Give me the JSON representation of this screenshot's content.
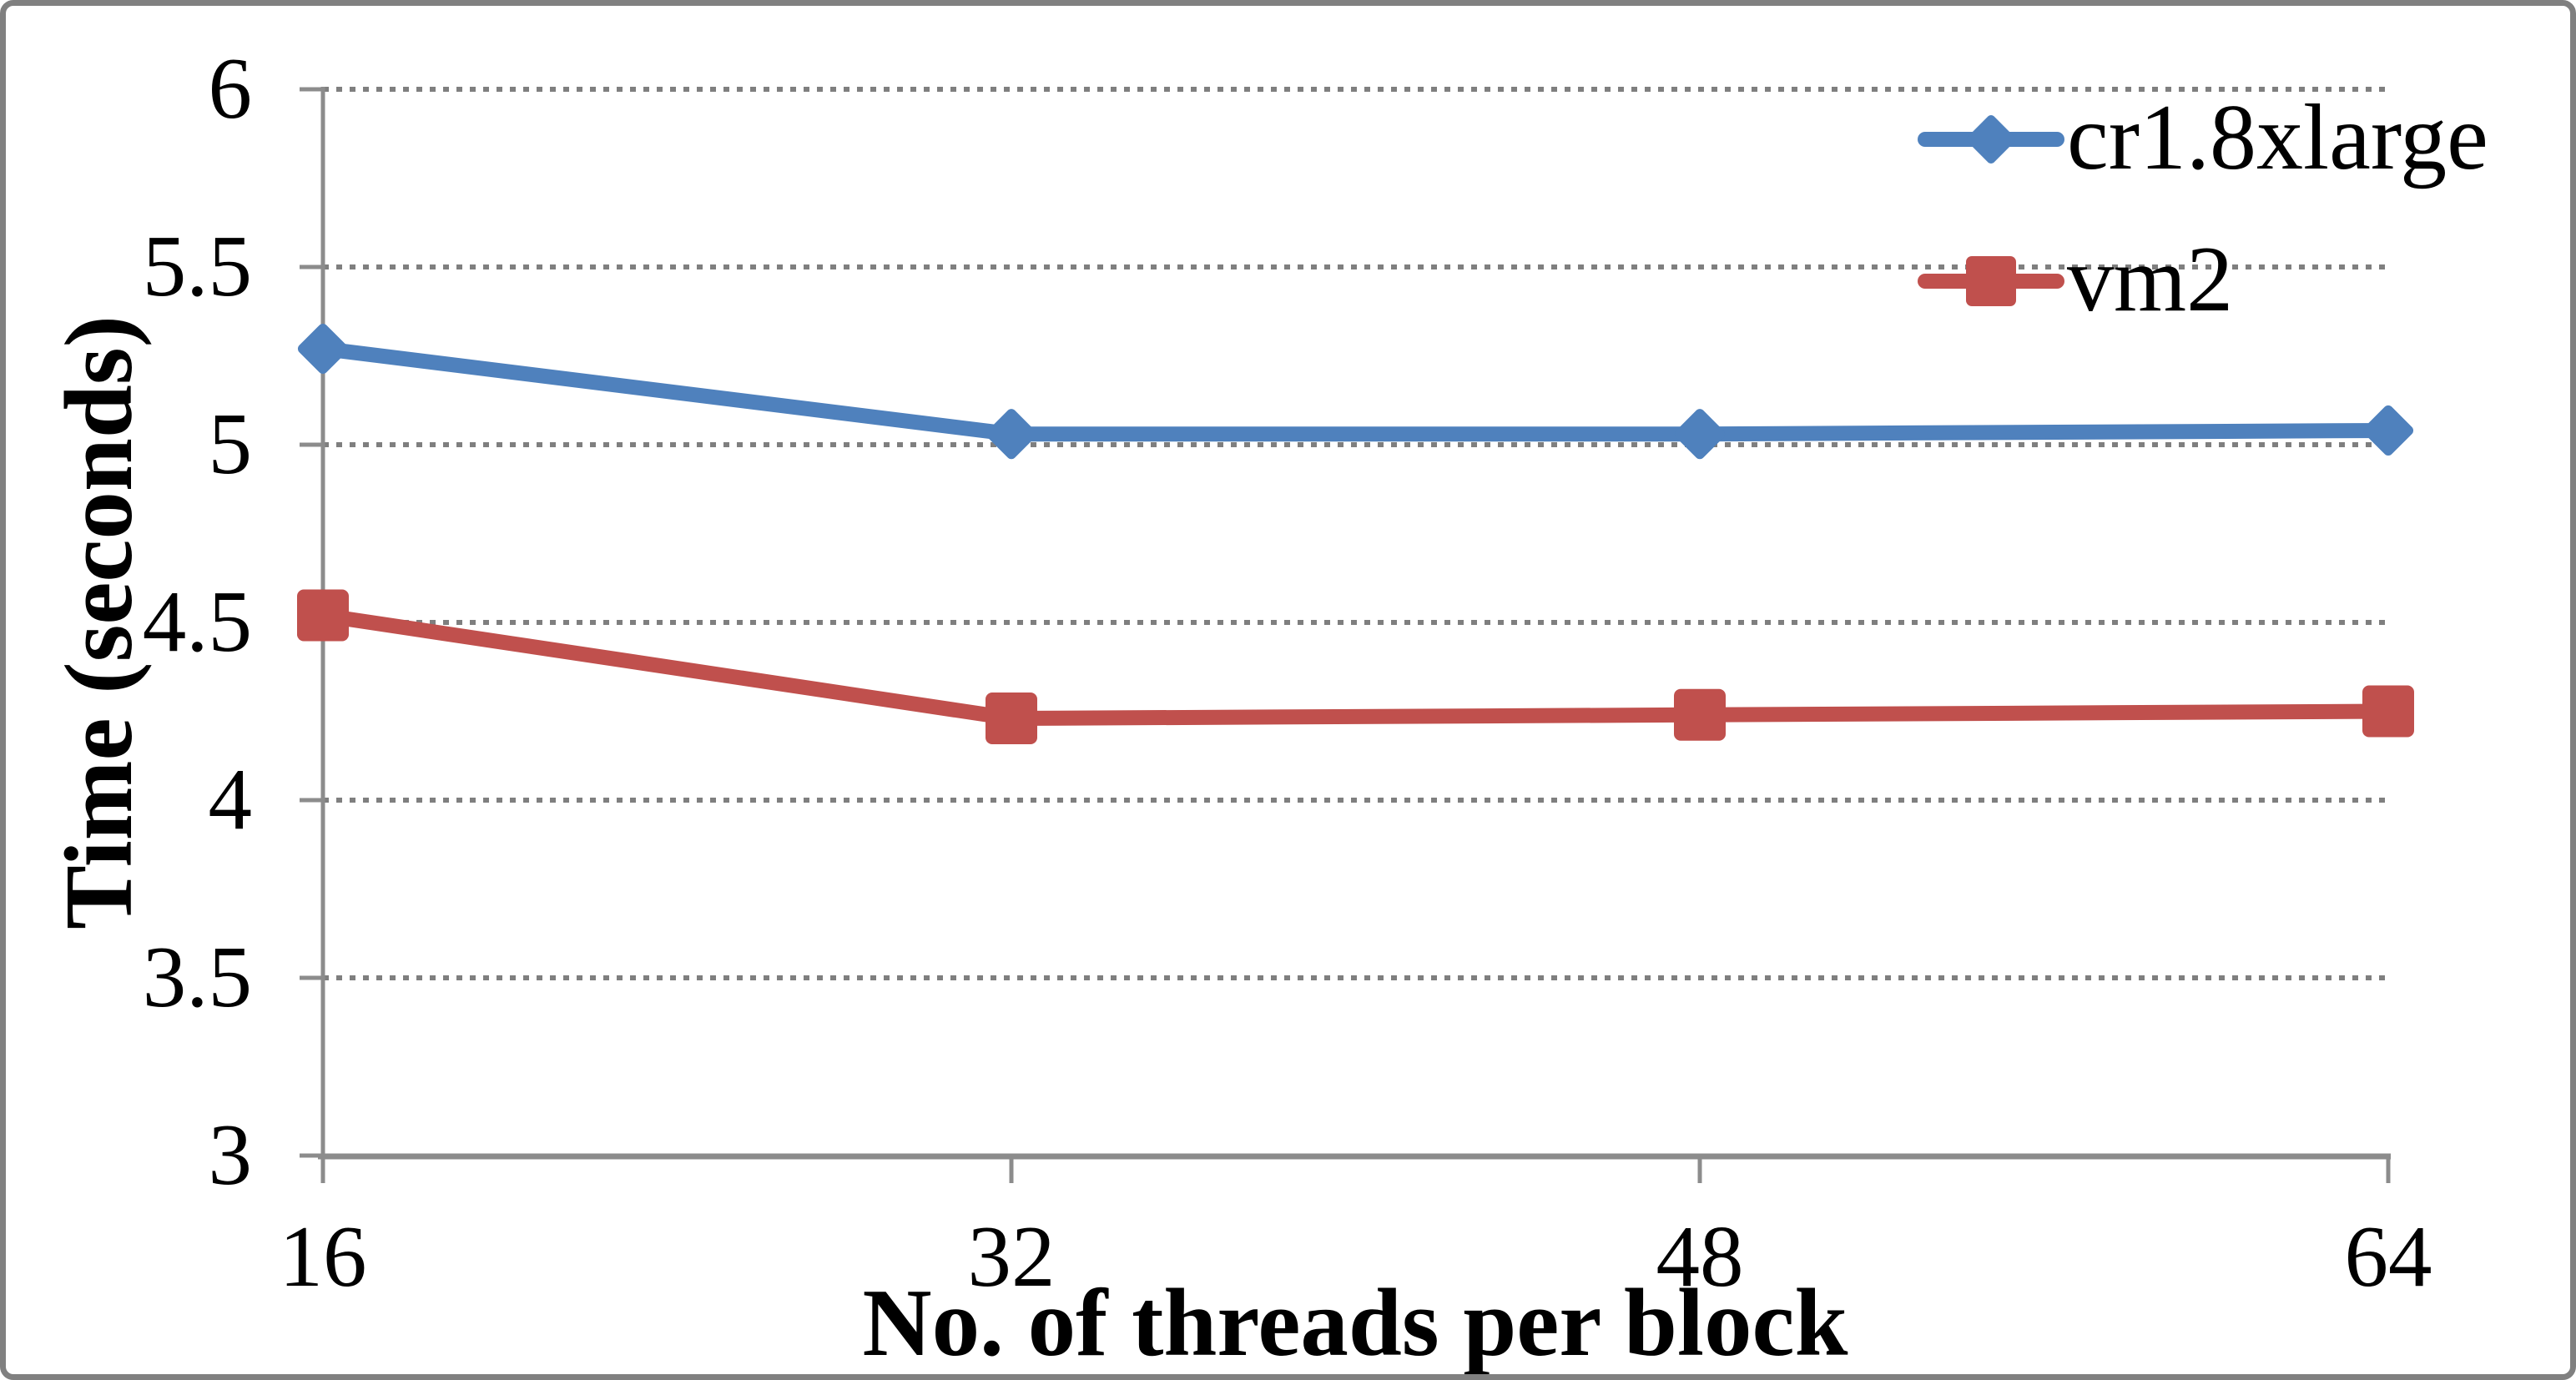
{
  "chart_data": {
    "type": "line",
    "title": "",
    "xlabel": "No. of threads per block",
    "ylabel": "Time (seconds)",
    "categories": [
      "16",
      "32",
      "48",
      "64"
    ],
    "series": [
      {
        "name": "cr1.8xlarge",
        "color": "#4F81BD",
        "marker": "diamond",
        "values": [
          5.27,
          5.03,
          5.03,
          5.04
        ]
      },
      {
        "name": "vm2",
        "color": "#C0504D",
        "marker": "square",
        "values": [
          4.52,
          4.23,
          4.24,
          4.25
        ]
      }
    ],
    "ylim": [
      3,
      6
    ],
    "yticks": [
      6,
      5.5,
      5,
      4.5,
      4,
      3.5,
      3
    ],
    "grid": "dotted horizontal",
    "legend_position": "top-right"
  },
  "colors": {
    "axis": "#8C8C8C",
    "gridline": "#7F7F7F",
    "frame_border": "#808080",
    "background": "#FFFFFF",
    "text": "#000000"
  }
}
